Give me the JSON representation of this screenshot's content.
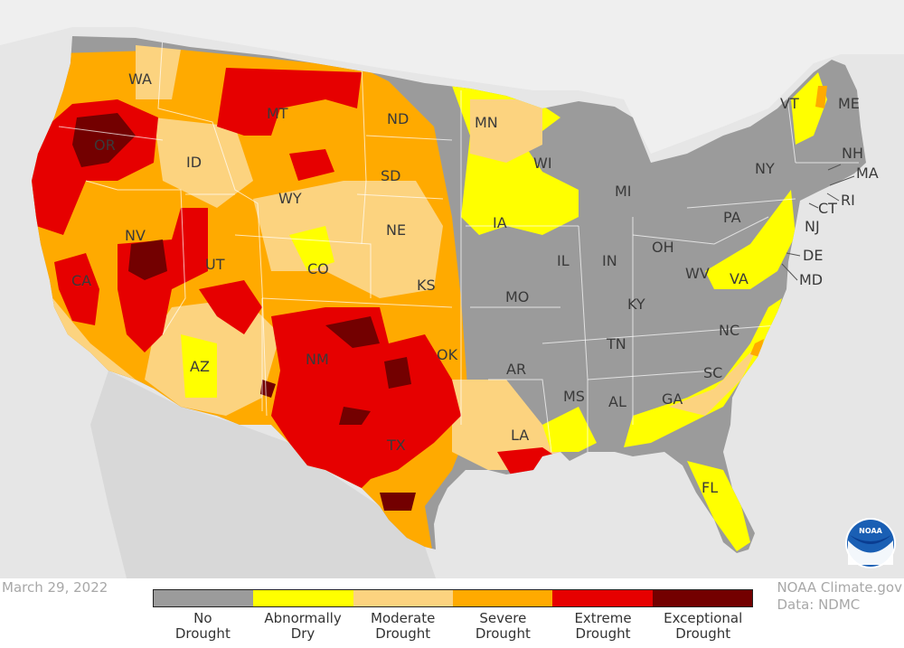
{
  "date": "March 29, 2022",
  "credit": {
    "line1": "NOAA Climate.gov",
    "line2": "Data: NDMC"
  },
  "colors": {
    "background": "#e6e6e6",
    "land_outside": "#d4d4d4",
    "none": "#9b9b9b",
    "d0": "#ffff00",
    "d1": "#fcd37f",
    "d2": "#ffaa00",
    "d3": "#e60000",
    "d4": "#730000"
  },
  "legend": [
    {
      "label1": "No",
      "label2": "Drought",
      "color": "#9b9b9b"
    },
    {
      "label1": "Abnormally",
      "label2": "Dry",
      "color": "#ffff00"
    },
    {
      "label1": "Moderate",
      "label2": "Drought",
      "color": "#fcd37f"
    },
    {
      "label1": "Severe",
      "label2": "Drought",
      "color": "#ffaa00"
    },
    {
      "label1": "Extreme",
      "label2": "Drought",
      "color": "#e60000"
    },
    {
      "label1": "Exceptional",
      "label2": "Drought",
      "color": "#730000"
    }
  ],
  "states": {
    "WA": "WA",
    "OR": "OR",
    "CA": "CA",
    "ID": "ID",
    "NV": "NV",
    "MT": "MT",
    "WY": "WY",
    "UT": "UT",
    "AZ": "AZ",
    "CO": "CO",
    "NM": "NM",
    "ND": "ND",
    "SD": "SD",
    "NE": "NE",
    "KS": "KS",
    "OK": "OK",
    "TX": "TX",
    "MN": "MN",
    "IA": "IA",
    "MO": "MO",
    "AR": "AR",
    "LA": "LA",
    "WI": "WI",
    "IL": "IL",
    "MI": "MI",
    "IN": "IN",
    "OH": "OH",
    "KY": "KY",
    "TN": "TN",
    "MS": "MS",
    "AL": "AL",
    "GA": "GA",
    "FL": "FL",
    "SC": "SC",
    "NC": "NC",
    "VA": "VA",
    "WV": "WV",
    "PA": "PA",
    "NY": "NY",
    "VT": "VT",
    "ME": "ME",
    "NH": "NH",
    "MA": "MA",
    "RI": "RI",
    "CT": "CT",
    "NJ": "NJ",
    "DE": "DE",
    "MD": "MD"
  },
  "logo": {
    "text": "NOAA"
  }
}
